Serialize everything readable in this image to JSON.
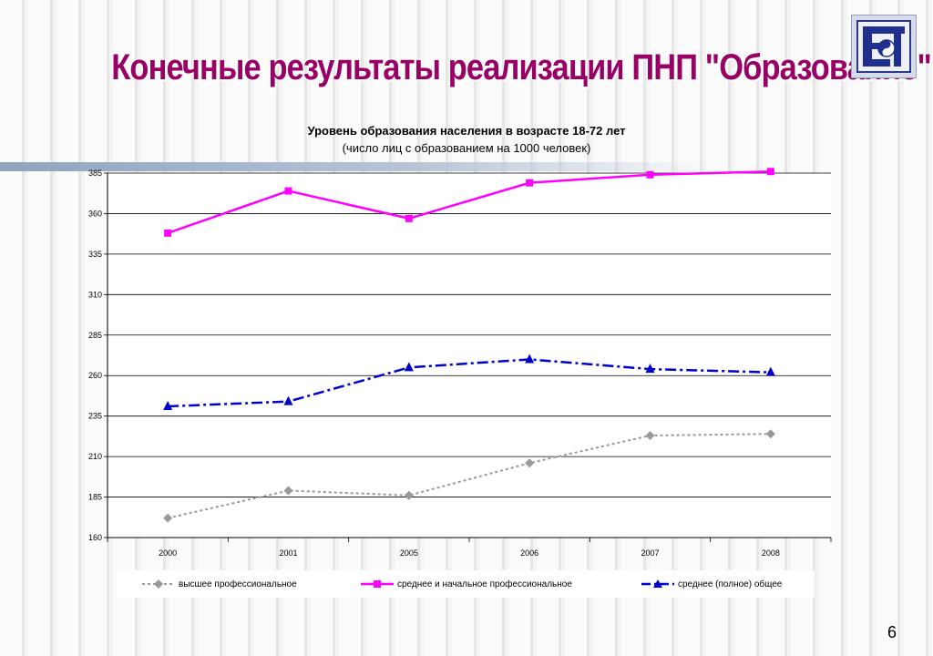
{
  "slide": {
    "title": "Конечные результаты реализации ПНП \"Образование\"",
    "page_number": "6"
  },
  "colors": {
    "title": "#990066",
    "series_gray": "#999999",
    "series_magenta": "#ff00ff",
    "series_blue": "#0000cc"
  },
  "chart_data": {
    "type": "line",
    "title": "Уровень образования населения в возрасте 18-72 лет",
    "subtitle": "(число лиц с образованием на 1000 человек)",
    "categories": [
      "2000",
      "2001",
      "2005",
      "2006",
      "2007",
      "2008"
    ],
    "y_ticks": [
      "385",
      "360",
      "335",
      "310",
      "285",
      "260",
      "235",
      "210",
      "185",
      "160"
    ],
    "ylim": [
      160,
      385
    ],
    "grid": true,
    "legend_position": "bottom",
    "series": [
      {
        "name": "высшее профессиональное",
        "values": [
          172,
          189,
          186,
          206,
          223,
          224
        ],
        "marker": "diamond",
        "line": "dotted",
        "color": "#999999"
      },
      {
        "name": "среднее и начальное профессиональное",
        "values": [
          348,
          374,
          357,
          379,
          384,
          386
        ],
        "marker": "square",
        "line": "solid",
        "color": "#ff00ff"
      },
      {
        "name": "среднее (полное) общее",
        "values": [
          241,
          244,
          265,
          270,
          264,
          262
        ],
        "marker": "triangle",
        "line": "dashdot",
        "color": "#0000cc"
      }
    ]
  }
}
